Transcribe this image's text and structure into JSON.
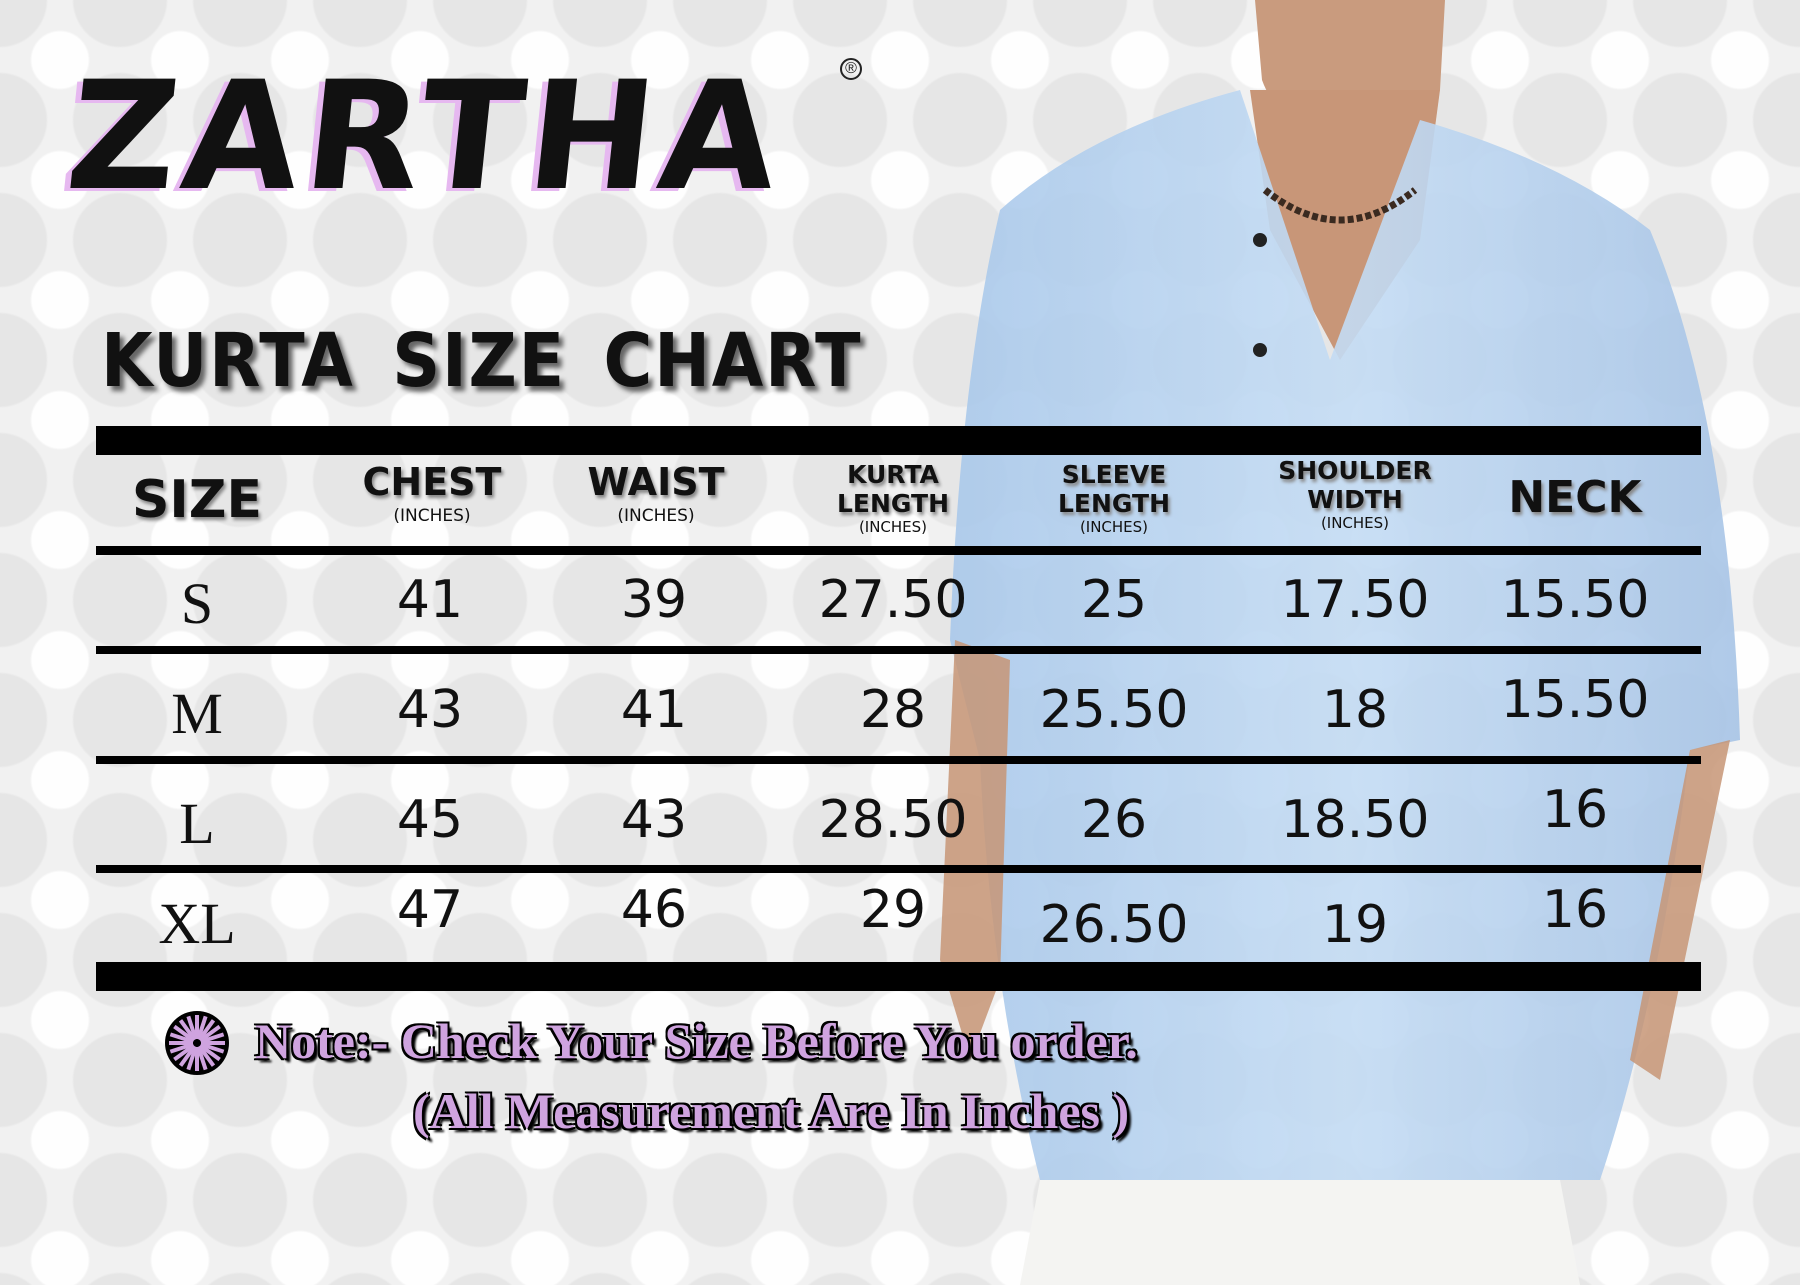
{
  "brand": {
    "logo_text": "ZARTHA",
    "registered": "®"
  },
  "title": "KURTA SIZE CHART",
  "table": {
    "headers": [
      {
        "label": "SIZE",
        "unit": ""
      },
      {
        "label": "CHEST",
        "unit": "(INCHES)"
      },
      {
        "label": "WAIST",
        "unit": "(INCHES)"
      },
      {
        "label": "KURTA LENGTH",
        "unit": "(INCHES)"
      },
      {
        "label": "SLEEVE LENGTH",
        "unit": "(INCHES)"
      },
      {
        "label": "SHOULDER WIDTH",
        "unit": "(INCHES)"
      },
      {
        "label": "NECK",
        "unit": ""
      }
    ],
    "rows": [
      [
        "S",
        "41",
        "39",
        "27.50",
        "25",
        "17.50",
        "15.50"
      ],
      [
        "M",
        "43",
        "41",
        "28",
        "25.50",
        "18",
        "15.50"
      ],
      [
        "L",
        "45",
        "43",
        "28.50",
        "26",
        "18.50",
        "16"
      ],
      [
        "XL",
        "47",
        "46",
        "29",
        "26.50",
        "19",
        "16"
      ]
    ]
  },
  "note": {
    "line1": "Note:- Check Your Size Before You order.",
    "line2": "(All Measurement Are In Inches )",
    "icon": "starburst-icon",
    "color": "#cfa3df"
  }
}
